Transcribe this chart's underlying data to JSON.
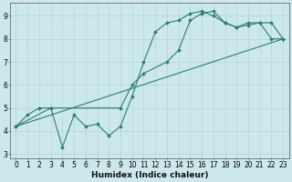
{
  "line1_x": [
    0,
    1,
    2,
    3,
    4,
    5,
    6,
    7,
    8,
    9,
    10,
    11,
    12,
    13,
    14,
    15,
    16,
    17,
    18,
    19,
    20,
    21,
    22,
    23
  ],
  "line1_y": [
    4.2,
    4.7,
    5.0,
    5.0,
    3.3,
    4.7,
    4.2,
    4.3,
    3.8,
    4.2,
    5.5,
    7.0,
    8.3,
    8.7,
    8.8,
    9.1,
    9.2,
    9.0,
    8.7,
    8.5,
    8.7,
    8.7,
    8.0,
    8.0
  ],
  "line2_x": [
    0,
    23
  ],
  "line2_y": [
    4.2,
    8.0
  ],
  "line3_x": [
    0,
    3,
    9,
    10,
    11,
    13,
    14,
    15,
    16,
    17,
    18,
    19,
    20,
    21,
    22,
    23
  ],
  "line3_y": [
    4.2,
    5.0,
    5.0,
    6.0,
    6.5,
    7.0,
    7.5,
    8.8,
    9.1,
    9.2,
    8.7,
    8.5,
    8.6,
    8.7,
    8.7,
    8.0
  ],
  "color": "#2e7d6e",
  "bg_color": "#cce8ec",
  "grid_color": "#aacfd4",
  "xlabel": "Humidex (Indice chaleur)",
  "xlim": [
    -0.5,
    23.5
  ],
  "ylim": [
    2.8,
    9.55
  ],
  "xticks": [
    0,
    1,
    2,
    3,
    4,
    5,
    6,
    7,
    8,
    9,
    10,
    11,
    12,
    13,
    14,
    15,
    16,
    17,
    18,
    19,
    20,
    21,
    22,
    23
  ],
  "yticks": [
    3,
    4,
    5,
    6,
    7,
    8,
    9
  ],
  "axis_fontsize": 5.5,
  "xlabel_fontsize": 6.5,
  "marker_size": 2.0,
  "linewidth": 0.8
}
